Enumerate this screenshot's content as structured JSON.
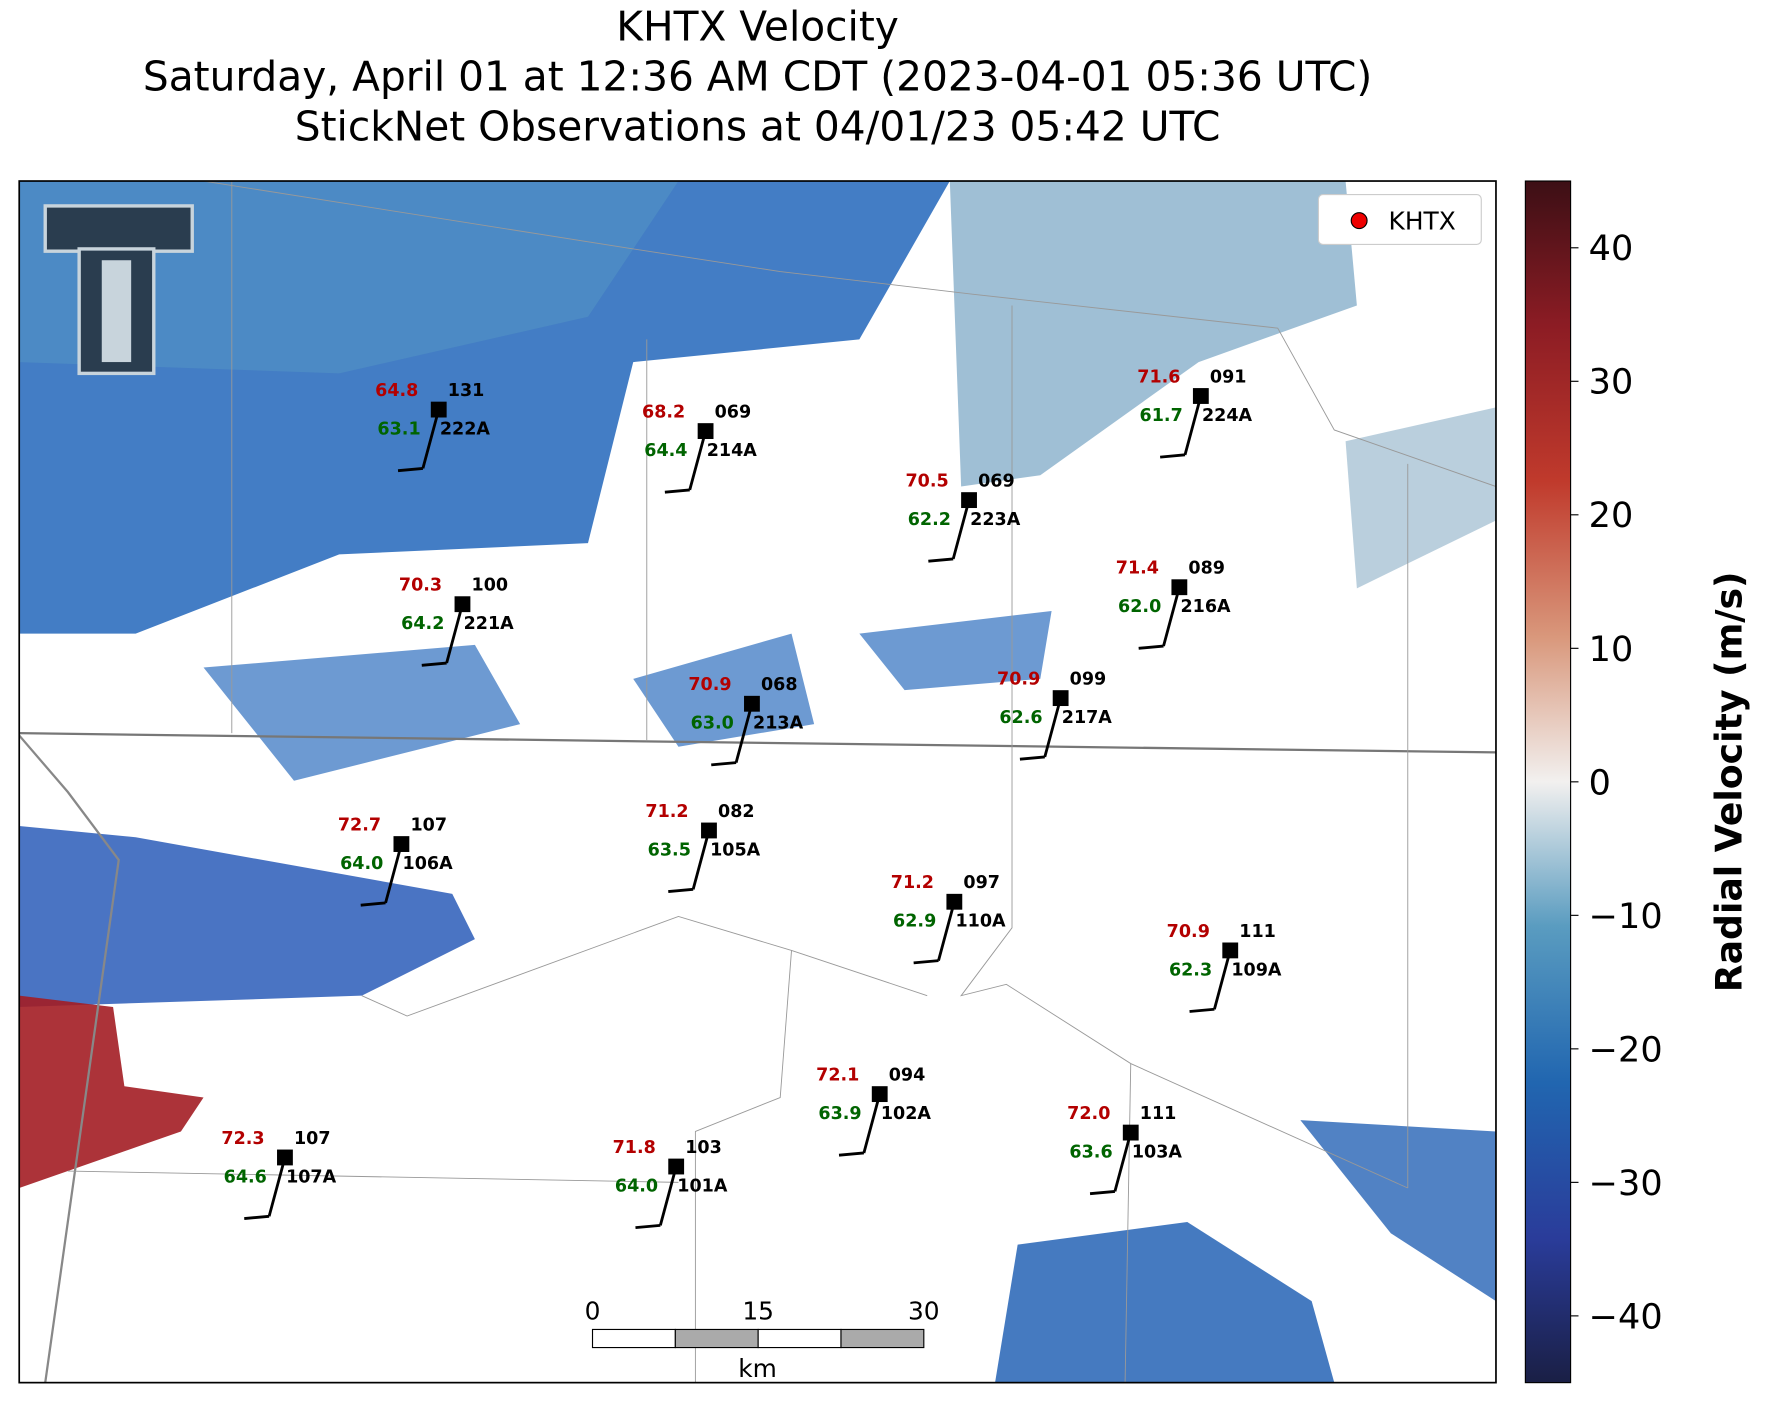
{
  "title": [
    "KHTX Velocity",
    "Saturday, April 01 at 12:36 AM CDT (2023-04-01 05:36 UTC)",
    "StickNet Observations at 04/01/23 05:42 UTC"
  ],
  "legend": {
    "label": "KHTX"
  },
  "colorbar": {
    "label": "Radial Velocity (m/s)",
    "clim": [
      -45,
      45
    ],
    "ticks": [
      {
        "value": -40,
        "label": "−40"
      },
      {
        "value": -30,
        "label": "−30"
      },
      {
        "value": -20,
        "label": "−20"
      },
      {
        "value": -10,
        "label": "−10"
      },
      0,
      10,
      20,
      30,
      40
    ]
  },
  "scale_bar": {
    "ticks": [
      0,
      15,
      30
    ],
    "unit": "km"
  },
  "stations": [
    {
      "id": "222A",
      "temperature": "64.8",
      "value": "131",
      "dewpoint": "63.1"
    },
    {
      "id": "214A",
      "temperature": "68.2",
      "value": "069",
      "dewpoint": "64.4"
    },
    {
      "id": "223A",
      "temperature": "70.5",
      "value": "069",
      "dewpoint": "62.2"
    },
    {
      "id": "224A",
      "temperature": "71.6",
      "value": "091",
      "dewpoint": "61.7"
    },
    {
      "id": "221A",
      "temperature": "70.3",
      "value": "100",
      "dewpoint": "64.2"
    },
    {
      "id": "216A",
      "temperature": "71.4",
      "value": "089",
      "dewpoint": "62.0"
    },
    {
      "id": "213A",
      "temperature": "70.9",
      "value": "068",
      "dewpoint": "63.0"
    },
    {
      "id": "217A",
      "temperature": "70.9",
      "value": "099",
      "dewpoint": "62.6"
    },
    {
      "id": "106A",
      "temperature": "72.7",
      "value": "107",
      "dewpoint": "64.0"
    },
    {
      "id": "105A",
      "temperature": "71.2",
      "value": "082",
      "dewpoint": "63.5"
    },
    {
      "id": "110A",
      "temperature": "71.2",
      "value": "097",
      "dewpoint": "62.9"
    },
    {
      "id": "109A",
      "temperature": "70.9",
      "value": "111",
      "dewpoint": "62.3"
    },
    {
      "id": "102A",
      "temperature": "72.1",
      "value": "094",
      "dewpoint": "63.9"
    },
    {
      "id": "103A",
      "temperature": "72.0",
      "value": "111",
      "dewpoint": "63.6"
    },
    {
      "id": "107A",
      "temperature": "72.3",
      "value": "107",
      "dewpoint": "64.6"
    },
    {
      "id": "101A",
      "temperature": "71.8",
      "value": "103",
      "dewpoint": "64.0"
    }
  ]
}
